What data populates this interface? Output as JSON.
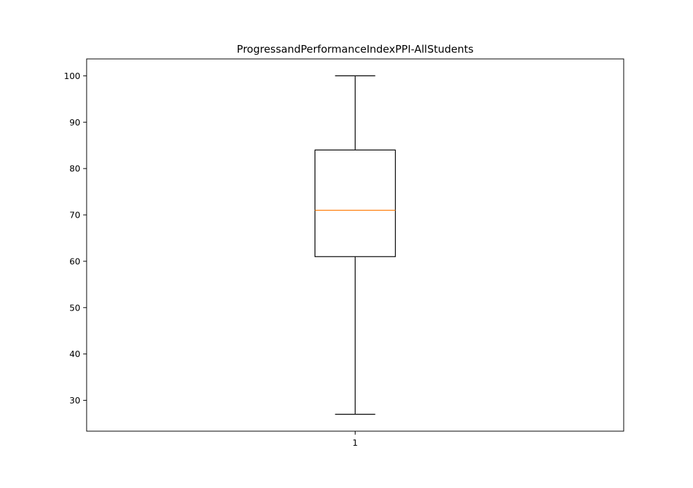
{
  "chart_data": {
    "type": "box",
    "title": "ProgressandPerformanceIndexPPI-AllStudents",
    "xlabel": "",
    "ylabel": "",
    "categories": [
      "1"
    ],
    "boxes": [
      {
        "label": "1",
        "whisker_low": 27,
        "q1": 61,
        "median": 71,
        "q3": 84,
        "whisker_high": 100
      }
    ],
    "ylim": [
      23.35,
      103.65
    ],
    "yticks": [
      30,
      40,
      50,
      60,
      70,
      80,
      90,
      100
    ],
    "grid": false,
    "colors": {
      "box": "#000000",
      "median": "#ff7f0e",
      "axes": "#000000"
    }
  }
}
